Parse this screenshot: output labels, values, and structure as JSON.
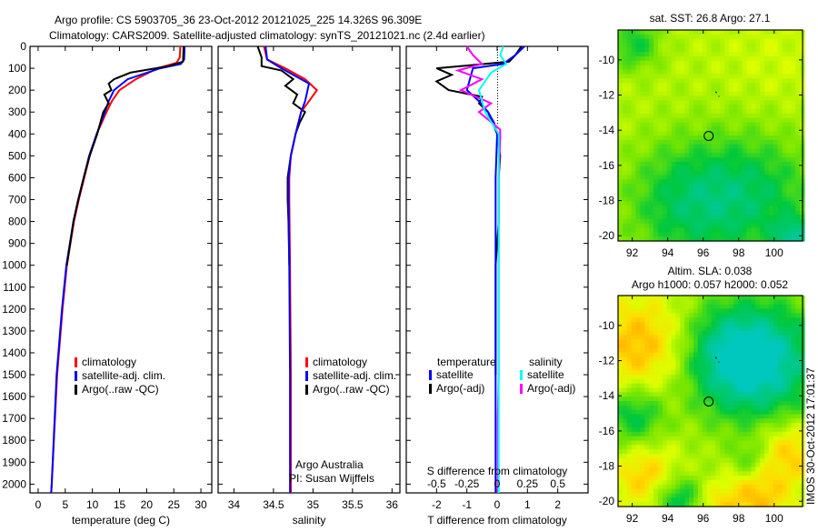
{
  "title": {
    "line1": "Argo profile: CS 5903705_36 23-Oct-2012 20121025_225 14.326S 96.309E",
    "line2": "Climatology: CARS2009. Satellite-adjusted climatology: synTS_20121021.nc (2.4d earlier)"
  },
  "colors": {
    "climatology": "#ff0000",
    "satellite": "#0000ff",
    "argo": "#000000",
    "sat_salinity": "#00ffff",
    "argo_salinity": "#ff00ff"
  },
  "chart_data": [
    {
      "type": "line",
      "name": "temperature",
      "xlabel": "temperature (deg C)",
      "ylabel": "depth",
      "xlim": [
        -1.5,
        32
      ],
      "ylim": [
        0,
        2040
      ],
      "xticks": [
        0,
        5,
        10,
        15,
        20,
        25,
        30
      ],
      "yticks": [
        0,
        100,
        200,
        300,
        400,
        500,
        600,
        700,
        800,
        900,
        1000,
        1100,
        1200,
        1300,
        1400,
        1500,
        1600,
        1700,
        1800,
        1900,
        2000
      ],
      "legend": [
        "climatology",
        "satellite-adj. clim.",
        "Argo(..raw -QC)"
      ],
      "series": [
        {
          "name": "climatology",
          "color": "#ff0000",
          "depth": [
            0,
            50,
            75,
            100,
            150,
            200,
            250,
            300,
            400,
            500,
            600,
            700,
            800,
            1000,
            1200,
            1500,
            2000,
            2040
          ],
          "values": [
            26.2,
            26.1,
            25.5,
            22,
            18,
            15,
            13.6,
            12.6,
            10.8,
            9.5,
            8.5,
            7.5,
            6.6,
            5.3,
            4.5,
            3.5,
            2.5,
            2.4
          ]
        },
        {
          "name": "satellite-adj. clim.",
          "color": "#0000ff",
          "depth": [
            0,
            60,
            80,
            100,
            150,
            200,
            250,
            300,
            400,
            500,
            600,
            700,
            800,
            1000,
            1200,
            1500,
            2000,
            2040
          ],
          "values": [
            27,
            26.9,
            26.3,
            22.5,
            16.5,
            14,
            13,
            12.3,
            10.8,
            9.4,
            8.4,
            7.4,
            6.5,
            5.2,
            4.4,
            3.4,
            2.5,
            2.4
          ]
        },
        {
          "name": "Argo(..raw -QC)",
          "color": "#000000",
          "depth": [
            0,
            70,
            90,
            120,
            150,
            170,
            200,
            220,
            260,
            300,
            400,
            500,
            600,
            700,
            800,
            1000
          ],
          "values": [
            26.8,
            26.7,
            24,
            17,
            14,
            13,
            13.5,
            12.2,
            13,
            12,
            10.9,
            9.5,
            8.4,
            7.4,
            6.5,
            5.3
          ]
        }
      ]
    },
    {
      "type": "line",
      "name": "salinity",
      "xlabel": "salinity",
      "xlim": [
        33.8,
        36.1
      ],
      "ylim": [
        0,
        2040
      ],
      "xticks": [
        34,
        34.5,
        35,
        35.5,
        36
      ],
      "legend": [
        "climatology",
        "satellite-adj. clim.",
        "Argo(..raw -QC)"
      ],
      "annotation": [
        "Argo Australia",
        "PI: Susan Wijffels"
      ],
      "series": [
        {
          "name": "climatology",
          "color": "#ff0000",
          "depth": [
            0,
            60,
            100,
            150,
            200,
            250,
            300,
            400,
            500,
            600,
            700,
            1000,
            1500,
            2000,
            2040
          ],
          "values": [
            34.38,
            34.42,
            34.65,
            34.9,
            35.05,
            34.95,
            34.85,
            34.78,
            34.72,
            34.7,
            34.7,
            34.71,
            34.72,
            34.72,
            34.72
          ]
        },
        {
          "name": "satellite-adj. clim.",
          "color": "#0000ff",
          "depth": [
            0,
            60,
            100,
            170,
            250,
            300,
            400,
            500,
            600,
            700,
            1000,
            1500,
            2000,
            2040
          ],
          "values": [
            34.4,
            34.42,
            34.6,
            34.95,
            34.9,
            34.85,
            34.78,
            34.72,
            34.69,
            34.69,
            34.7,
            34.71,
            34.71,
            34.71
          ]
        },
        {
          "name": "Argo(..raw -QC)",
          "color": "#000000",
          "depth": [
            0,
            50,
            90,
            110,
            150,
            180,
            220,
            260,
            300,
            350,
            400,
            500,
            600,
            700,
            800,
            1000
          ],
          "values": [
            34.3,
            34.35,
            34.35,
            34.6,
            34.75,
            34.65,
            34.8,
            34.75,
            34.9,
            34.83,
            34.78,
            34.72,
            34.68,
            34.68,
            34.69,
            34.7
          ]
        }
      ]
    },
    {
      "type": "line",
      "name": "differences",
      "xlabel": "T difference from climatology",
      "x2label": "S difference from climatology",
      "xlim": [
        -3,
        3
      ],
      "xticks": [
        -2,
        -1,
        0,
        1,
        2
      ],
      "x2ticks": [
        "-0.5",
        "-0.25",
        "0",
        "0.25",
        "0.5"
      ],
      "legend_headers": [
        "temperature",
        "salinity"
      ],
      "legend": [
        "satellite",
        "Argo(-adj)",
        "satellite",
        "Argo(-adj)"
      ],
      "series": [
        {
          "name": "T satellite",
          "color": "#0000ff",
          "units": "T",
          "depth": [
            0,
            40,
            80,
            100,
            150,
            200,
            250,
            300,
            350,
            400,
            600,
            1000,
            1500,
            2040
          ],
          "values": [
            0.9,
            0.6,
            0.2,
            -0.8,
            -0.9,
            -1.0,
            -0.6,
            -0.3,
            -0.1,
            0,
            -0.05,
            -0.05,
            -0.05,
            -0.05
          ]
        },
        {
          "name": "T Argo(-adj)",
          "color": "#000000",
          "units": "T",
          "depth": [
            0,
            40,
            70,
            100,
            130,
            160,
            200,
            230,
            260,
            300,
            400,
            500,
            600,
            700,
            800,
            1000,
            1500
          ],
          "values": [
            0.8,
            0.6,
            0.4,
            -2.0,
            -1.5,
            -2.0,
            -1.6,
            -0.5,
            -0.6,
            -0.3,
            0,
            0.1,
            0.05,
            0.05,
            0.05,
            -0.05,
            -0.05
          ]
        },
        {
          "name": "S satellite",
          "color": "#00ffff",
          "units": "T",
          "depth": [
            0,
            40,
            80,
            120,
            200,
            300,
            400,
            600,
            1000,
            2040
          ],
          "values": [
            0.2,
            0.1,
            0.3,
            -0.2,
            -0.6,
            -0.4,
            0.05,
            0.05,
            0.05,
            0.05
          ]
        },
        {
          "name": "S Argo(-adj)",
          "color": "#ff00ff",
          "units": "T",
          "depth": [
            0,
            40,
            80,
            110,
            150,
            200,
            260,
            300,
            380,
            420,
            600,
            1000,
            1500,
            1700,
            2040
          ],
          "values": [
            -1.0,
            -0.8,
            -0.5,
            -1.3,
            -0.5,
            -1.2,
            -0.2,
            -0.6,
            0.1,
            0.1,
            0.05,
            0.05,
            0.05,
            0.02,
            0.02
          ]
        }
      ]
    },
    {
      "type": "heatmap",
      "name": "sst-map",
      "title": "sat. SST: 26.8 Argo: 27.1",
      "xlim": [
        91.2,
        101.6
      ],
      "ylim": [
        -20.3,
        -8.3
      ],
      "xticks": [
        92,
        94,
        96,
        98,
        100
      ],
      "yticks": [
        -10,
        -12,
        -14,
        -16,
        -18,
        -20
      ],
      "argo_position": [
        96.309,
        -14.326
      ],
      "track": [
        [
          96.7,
          -11.8
        ],
        [
          96.9,
          -12.1
        ]
      ],
      "base": 0.62,
      "blobs": [
        [
          95,
          -18,
          -0.35,
          2.5
        ],
        [
          99,
          -17.5,
          -0.3,
          2.5
        ],
        [
          92,
          -9,
          -0.3,
          1
        ],
        [
          101,
          -20,
          -0.4,
          0.8
        ],
        [
          100,
          -10,
          0.05,
          2
        ]
      ]
    },
    {
      "type": "heatmap",
      "name": "sla-map",
      "title": [
        "Altim. SLA: 0.038",
        "Argo h1000: 0.057 h2000: 0.052"
      ],
      "xlim": [
        91.2,
        101.6
      ],
      "ylim": [
        -20.3,
        -8.3
      ],
      "xticks": [
        92,
        94,
        96,
        98,
        100
      ],
      "yticks": [
        -10,
        -12,
        -14,
        -16,
        -18,
        -20
      ],
      "argo_position": [
        96.309,
        -14.326
      ],
      "track": [
        [
          96.7,
          -11.8
        ],
        [
          96.9,
          -12.1
        ]
      ],
      "base": 0.6,
      "blobs": [
        [
          92.5,
          -11,
          0.35,
          2
        ],
        [
          92.7,
          -18.5,
          0.3,
          1.3
        ],
        [
          100.8,
          -17,
          0.3,
          1.3
        ],
        [
          99,
          -19.8,
          0.3,
          1.3
        ],
        [
          96.5,
          -20.2,
          0.2,
          1
        ],
        [
          99.2,
          -12,
          -0.55,
          2.4
        ],
        [
          97,
          -11.5,
          -0.3,
          2
        ],
        [
          92,
          -15,
          -0.35,
          1.2
        ],
        [
          94.5,
          -19.8,
          -0.4,
          1
        ],
        [
          98.5,
          -17.5,
          -0.2,
          0.7
        ]
      ]
    }
  ],
  "footer": "IMOS 30-Oct-2012 17:01:37"
}
